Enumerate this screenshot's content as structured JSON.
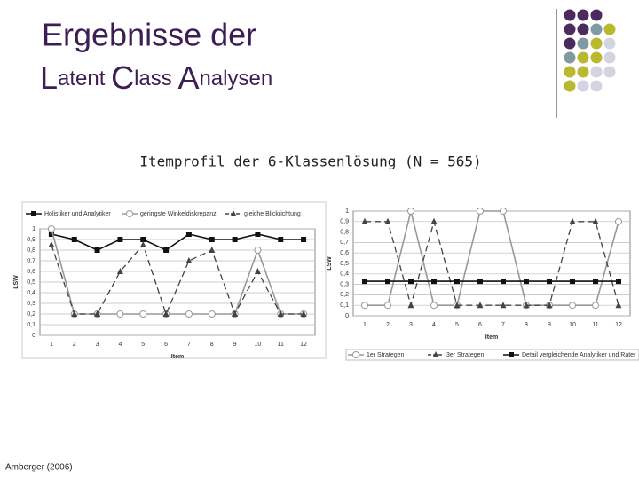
{
  "slide": {
    "title_line1": "Ergebnisse der",
    "title_line2": [
      "L",
      "atent ",
      "C",
      "lass ",
      "A",
      "nalysen"
    ],
    "subtitle": "Itemprofil der 6-Klassenlösung (N = 565)",
    "footer": "Amberger (2006)"
  },
  "chart_data": [
    {
      "type": "line",
      "legend": "top",
      "x_label": "Item",
      "y_label": "LSW",
      "categories": [
        "1",
        "2",
        "3",
        "4",
        "5",
        "6",
        "7",
        "8",
        "9",
        "10",
        "11",
        "12"
      ],
      "ylim": [
        0,
        1
      ],
      "grid": true,
      "yticks": [
        0,
        {
          "value": 0.1,
          "label": "0,1"
        },
        {
          "value": 0.2,
          "label": "0,2"
        },
        {
          "value": 0.3,
          "label": "0,3"
        },
        {
          "value": 0.4,
          "label": "0,4"
        },
        {
          "value": 0.5,
          "label": "0,5"
        },
        {
          "value": 0.6,
          "label": "0,6"
        },
        {
          "value": 0.7,
          "label": "0,7"
        },
        {
          "value": 0.8,
          "label": "0,8"
        },
        {
          "value": 0.9,
          "label": "0,9"
        },
        1
      ],
      "series": [
        {
          "name": "Holistiker und Analytiker",
          "color": "#111111",
          "marker": "square",
          "dash": false,
          "values": [
            0.95,
            0.9,
            0.8,
            0.9,
            0.9,
            0.8,
            0.95,
            0.9,
            0.9,
            0.95,
            0.9,
            0.9
          ]
        },
        {
          "name": "geringste Winkeldiskrepanz",
          "color": "#999999",
          "marker": "circle",
          "dash": false,
          "values": [
            1,
            0.2,
            0.2,
            0.2,
            0.2,
            0.2,
            0.2,
            0.2,
            0.2,
            0.8,
            0.2,
            0.2
          ]
        },
        {
          "name": "gleiche Blickrichtung",
          "color": "#444444",
          "marker": "triangle",
          "dash": true,
          "values": [
            0.85,
            0.2,
            0.2,
            0.6,
            0.85,
            0.2,
            0.7,
            0.8,
            0.2,
            0.6,
            0.2,
            0.2
          ]
        }
      ]
    },
    {
      "type": "line",
      "legend": "bottom",
      "x_label": "Item",
      "y_label": "LSW",
      "categories": [
        "1",
        "2",
        "3",
        "4",
        "5",
        "6",
        "7",
        "8",
        "9",
        "10",
        "11",
        "12"
      ],
      "ylim": [
        0,
        1
      ],
      "grid": true,
      "yticks": [
        0,
        {
          "value": 0.1,
          "label": "0,1"
        },
        {
          "value": 0.2,
          "label": "0,2"
        },
        {
          "value": 0.3,
          "label": "0,3"
        },
        {
          "value": 0.4,
          "label": "0,4"
        },
        {
          "value": 0.5,
          "label": "0,5"
        },
        {
          "value": 0.6,
          "label": "0,6"
        },
        {
          "value": 0.7,
          "label": "0,7"
        },
        {
          "value": 0.8,
          "label": "0,8"
        },
        {
          "value": 0.9,
          "label": "0,9"
        },
        1
      ],
      "series": [
        {
          "name": "1er Strategen",
          "color": "#999999",
          "marker": "circle",
          "dash": false,
          "values": [
            0.1,
            0.1,
            1,
            0.1,
            0.1,
            1,
            1,
            0.1,
            0.1,
            0.1,
            0.1,
            0.9
          ]
        },
        {
          "name": "3er Strategen",
          "color": "#444444",
          "marker": "triangle",
          "dash": true,
          "values": [
            0.9,
            0.9,
            0.1,
            0.9,
            0.1,
            0.1,
            0.1,
            0.1,
            0.1,
            0.9,
            0.9,
            0.1
          ]
        },
        {
          "name": "Detail vergleichende Analytiker und Rater",
          "color": "#111111",
          "marker": "square",
          "dash": false,
          "values": [
            0.33,
            0.33,
            0.33,
            0.33,
            0.33,
            0.33,
            0.33,
            0.33,
            0.33,
            0.33,
            0.33,
            0.33
          ]
        }
      ]
    }
  ]
}
